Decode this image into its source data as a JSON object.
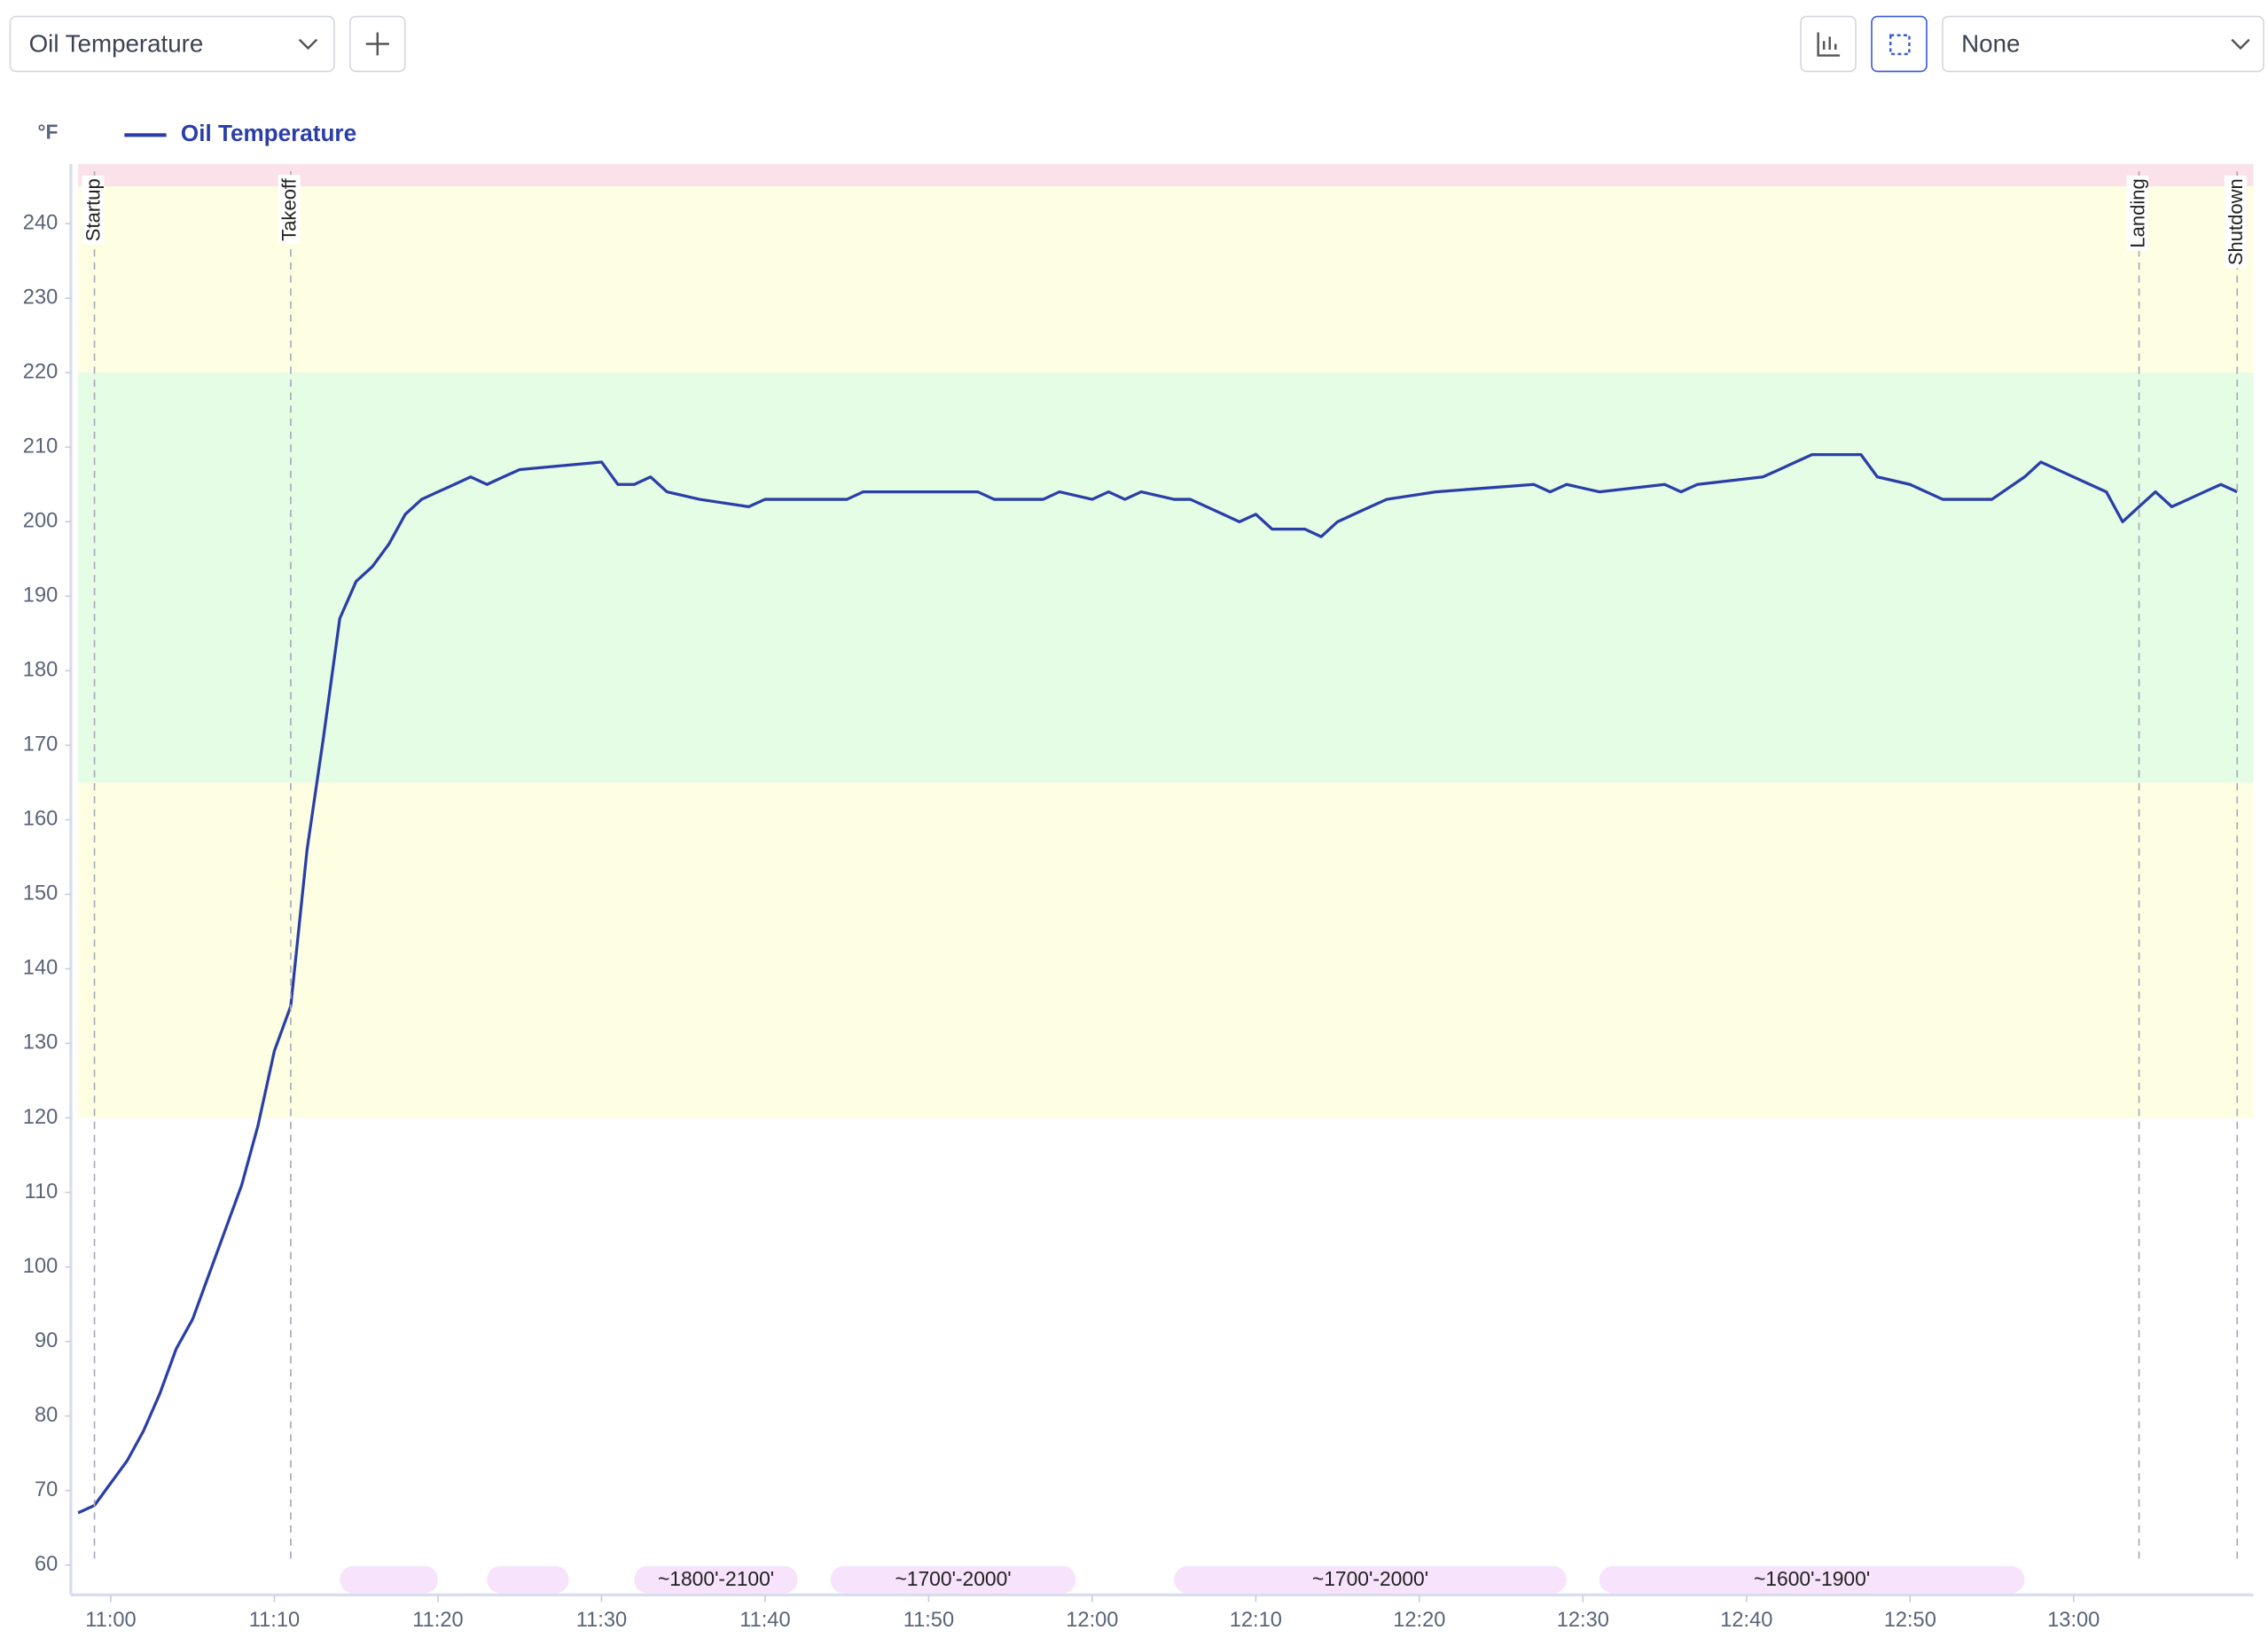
{
  "toolbar": {
    "metric": "Oil Temperature",
    "group": "None"
  },
  "chart_data": {
    "type": "line",
    "y_unit": "°F",
    "series": [
      {
        "name": "Oil Temperature",
        "color": "#2a3ea8",
        "x": [
          "10:58",
          "10:59",
          "11:00",
          "11:01",
          "11:02",
          "11:03",
          "11:04",
          "11:05",
          "11:06",
          "11:07",
          "11:08",
          "11:09",
          "11:10",
          "11:11",
          "11:12",
          "11:13",
          "11:14",
          "11:15",
          "11:16",
          "11:17",
          "11:18",
          "11:19",
          "11:20",
          "11:21",
          "11:22",
          "11:23",
          "11:24",
          "11:25",
          "11:30",
          "11:31",
          "11:32",
          "11:33",
          "11:34",
          "11:36",
          "11:39",
          "11:40",
          "11:45",
          "11:46",
          "11:53",
          "11:54",
          "11:57",
          "11:58",
          "12:00",
          "12:01",
          "12:02",
          "12:03",
          "12:05",
          "12:06",
          "12:08",
          "12:09",
          "12:10",
          "12:11",
          "12:13",
          "12:14",
          "12:15",
          "12:16",
          "12:17",
          "12:18",
          "12:21",
          "12:27",
          "12:28",
          "12:29",
          "12:31",
          "12:35",
          "12:36",
          "12:37",
          "12:41",
          "12:42",
          "12:43",
          "12:44",
          "12:47",
          "12:48",
          "12:50",
          "12:52",
          "12:55",
          "12:57",
          "12:58",
          "12:59",
          "13:01",
          "13:02",
          "13:03",
          "13:04",
          "13:05",
          "13:06",
          "13:07",
          "13:08",
          "13:09",
          "13:10"
        ],
        "values": [
          67,
          68,
          71,
          74,
          78,
          83,
          89,
          93,
          99,
          105,
          111,
          119,
          129,
          135,
          156,
          171,
          187,
          192,
          194,
          197,
          201,
          203,
          204,
          205,
          206,
          205,
          206,
          207,
          208,
          205,
          205,
          206,
          204,
          203,
          202,
          203,
          203,
          204,
          204,
          203,
          203,
          204,
          203,
          204,
          203,
          204,
          203,
          203,
          201,
          200,
          201,
          199,
          199,
          198,
          200,
          201,
          202,
          203,
          204,
          205,
          204,
          205,
          204,
          205,
          204,
          205,
          206,
          207,
          208,
          209,
          209,
          206,
          205,
          203,
          203,
          206,
          208,
          207,
          205,
          204,
          200,
          202,
          204,
          202,
          203,
          204,
          205,
          204
        ]
      }
    ],
    "xlim": [
      "10:58",
      "13:11"
    ],
    "xticks": [
      "11:00",
      "11:10",
      "11:20",
      "11:30",
      "11:40",
      "11:50",
      "12:00",
      "12:10",
      "12:20",
      "12:30",
      "12:40",
      "12:50",
      "13:00"
    ],
    "ylim": [
      56,
      248
    ],
    "yticks": [
      60,
      70,
      80,
      90,
      100,
      110,
      120,
      130,
      140,
      150,
      160,
      170,
      180,
      190,
      200,
      210,
      220,
      230,
      240
    ],
    "bands": [
      {
        "from": 245,
        "to": 248,
        "color": "#fbe2ea"
      },
      {
        "from": 220,
        "to": 245,
        "color": "#fefee2"
      },
      {
        "from": 165,
        "to": 220,
        "color": "#e5fce5"
      },
      {
        "from": 120,
        "to": 165,
        "color": "#fefee2"
      }
    ],
    "annotations": [
      {
        "x": "10:59",
        "label": "Startup"
      },
      {
        "x": "11:11",
        "label": "Takeoff"
      },
      {
        "x": "13:04",
        "label": "Landing"
      },
      {
        "x": "13:10",
        "label": "Shutdown"
      }
    ],
    "segments": [
      {
        "start": "11:14",
        "end": "11:20"
      },
      {
        "start": "11:23",
        "end": "11:28"
      },
      {
        "start": "11:32",
        "end": "11:42",
        "label": "~1800'-2100'"
      },
      {
        "start": "11:44",
        "end": "11:59",
        "label": "~1700'-2000'"
      },
      {
        "start": "12:05",
        "end": "12:29",
        "label": "~1700'-2000'"
      },
      {
        "start": "12:31",
        "end": "12:57",
        "label": "~1600'-1900'"
      }
    ],
    "segment_color": "#f7e3fb"
  }
}
